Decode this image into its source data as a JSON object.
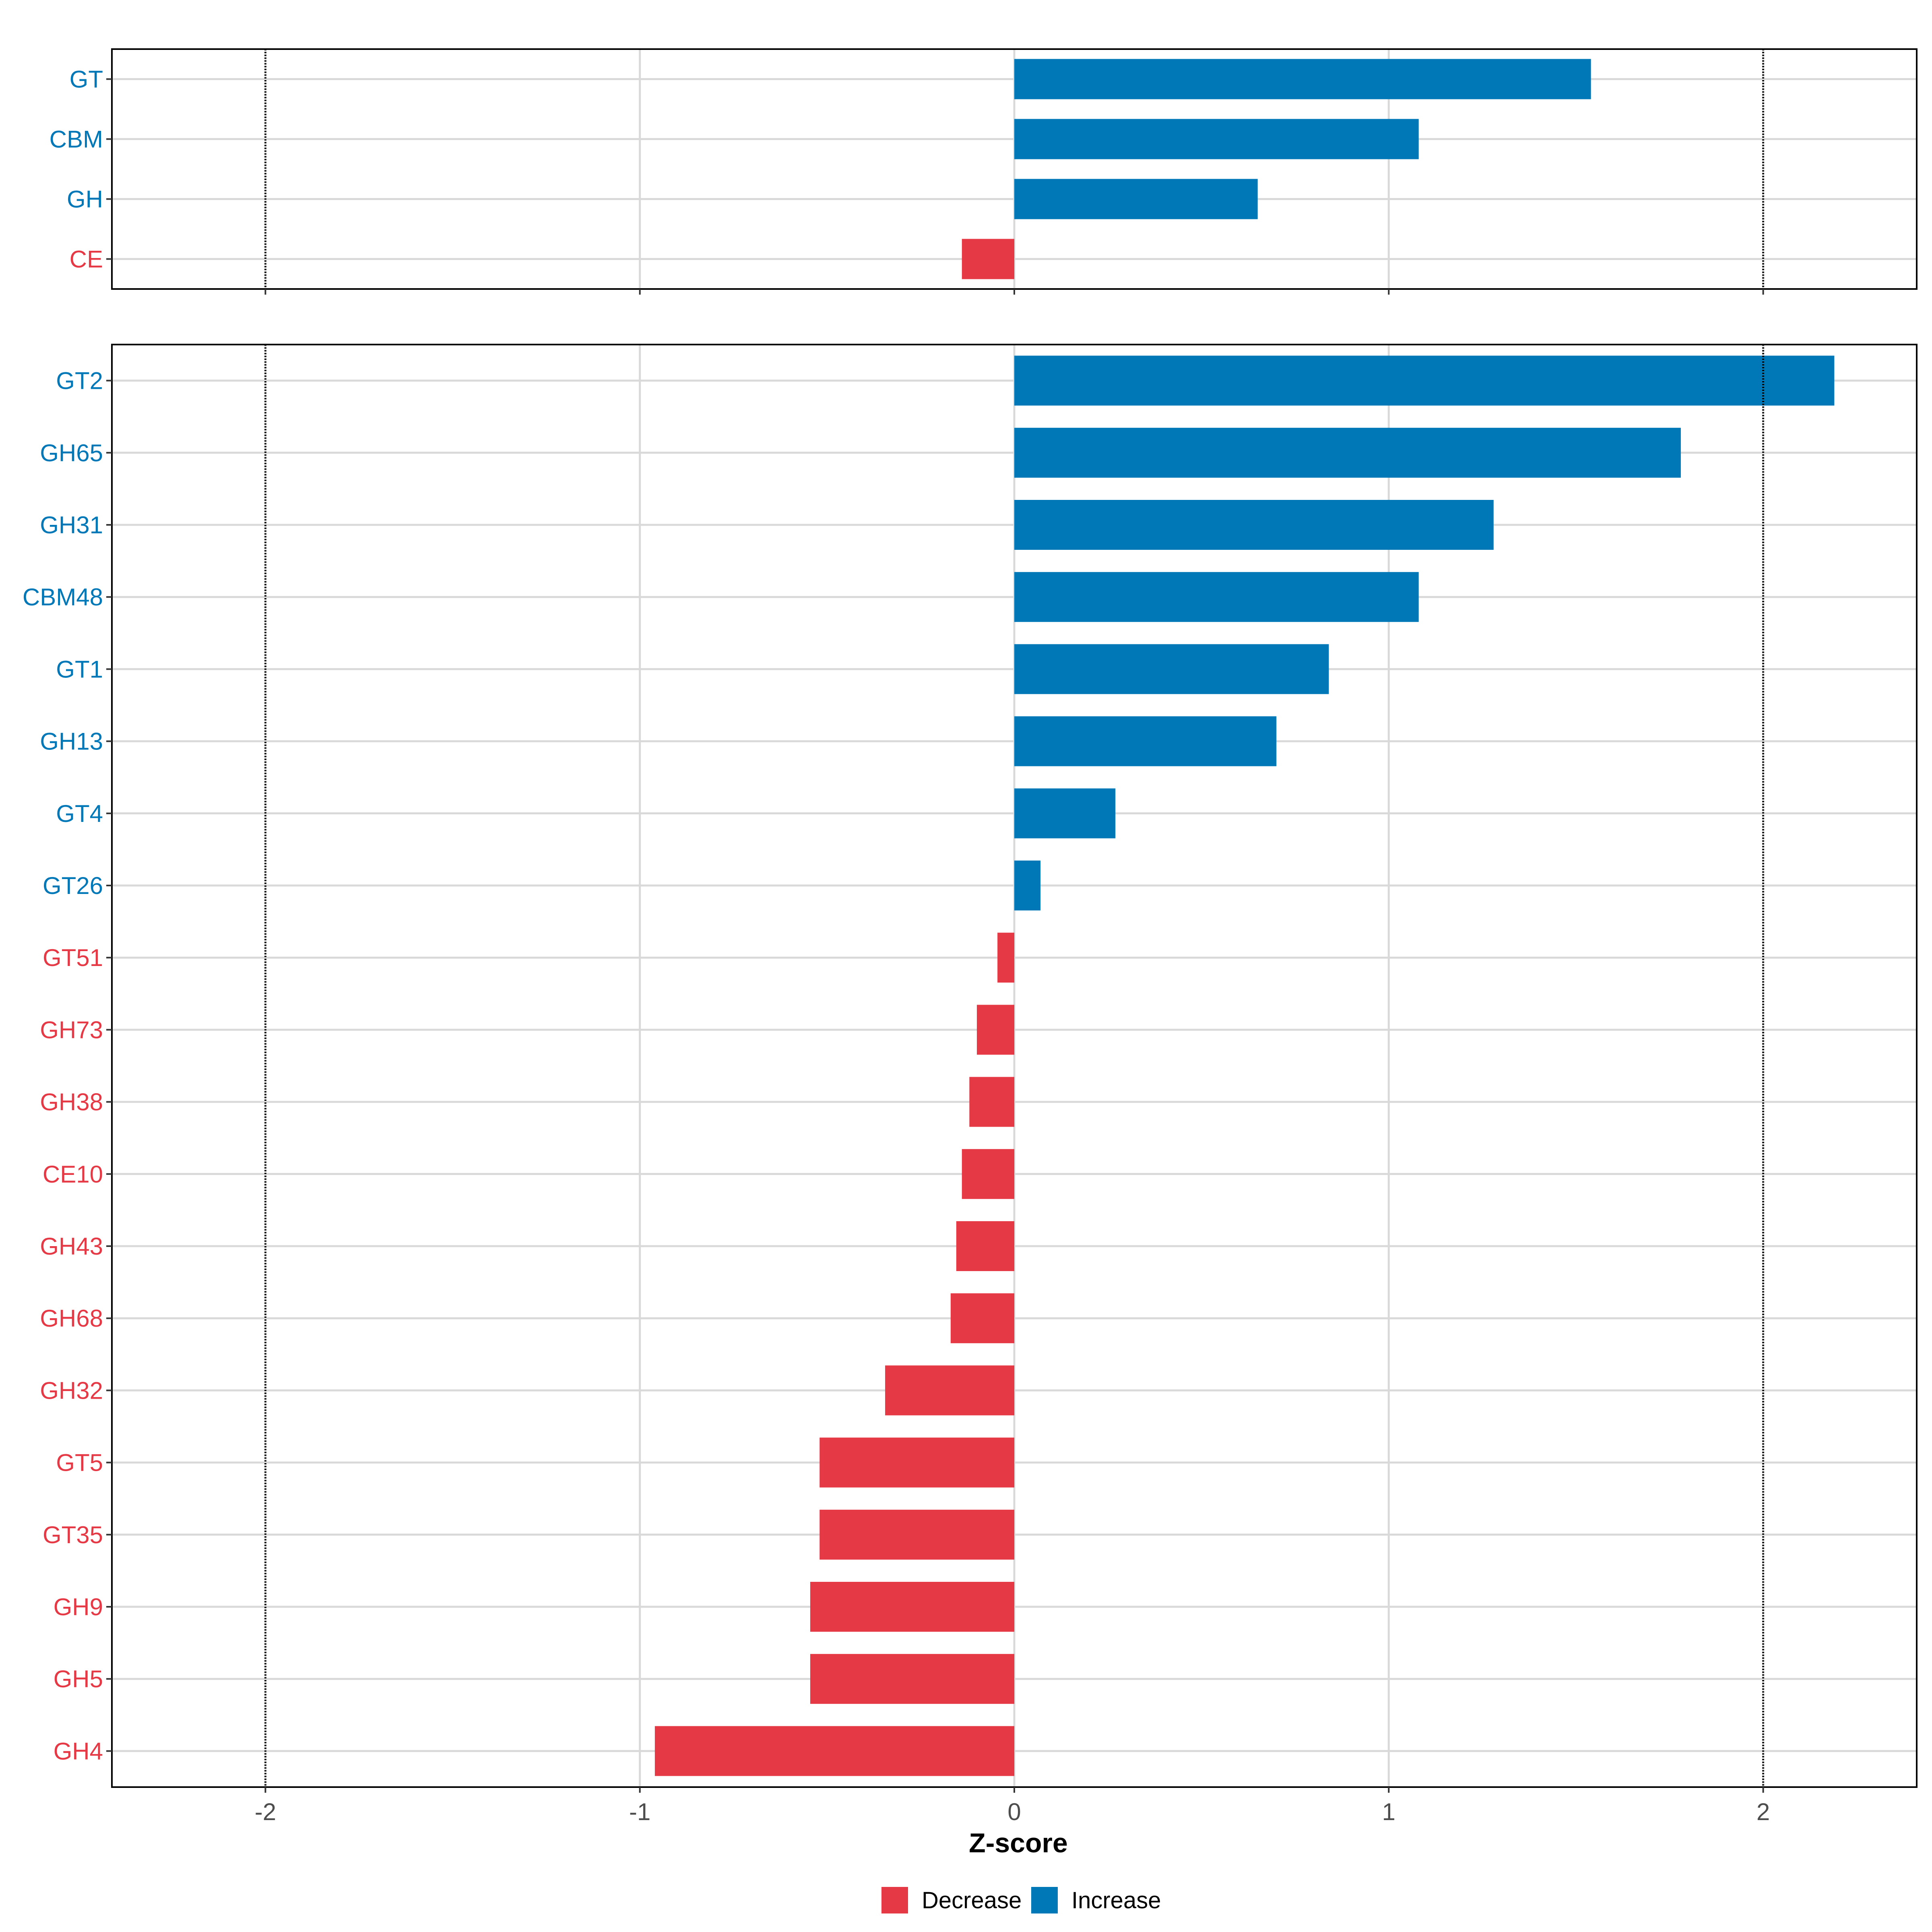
{
  "chart_data": [
    {
      "type": "bar",
      "orientation": "horizontal",
      "panel": "family",
      "categories": [
        "GT",
        "CBM",
        "GH",
        "CE"
      ],
      "values": [
        1.54,
        1.08,
        0.65,
        -0.14
      ],
      "xlim": [
        -2.41,
        2.41
      ],
      "reference_lines": [
        -2,
        2
      ]
    },
    {
      "type": "bar",
      "orientation": "horizontal",
      "panel": "subfamily",
      "categories": [
        "GT2",
        "GH65",
        "GH31",
        "CBM48",
        "GT1",
        "GH13",
        "GT4",
        "GT26",
        "GT51",
        "GH73",
        "GH38",
        "CE10",
        "GH43",
        "GH68",
        "GH32",
        "GT5",
        "GT35",
        "GH9",
        "GH5",
        "GH4"
      ],
      "values": [
        2.19,
        1.78,
        1.28,
        1.08,
        0.84,
        0.7,
        0.27,
        0.07,
        -0.045,
        -0.1,
        -0.12,
        -0.14,
        -0.155,
        -0.17,
        -0.345,
        -0.52,
        -0.52,
        -0.545,
        -0.545,
        -0.96
      ],
      "xlim": [
        -2.41,
        2.41
      ],
      "reference_lines": [
        -2,
        2
      ],
      "xticks": [
        "-2",
        "-1",
        "0",
        "1",
        "2"
      ],
      "xlabel": "Z-score"
    }
  ],
  "legend": {
    "items": [
      {
        "label": "Decrease",
        "color": "#E63946"
      },
      {
        "label": "Increase",
        "color": "#0077B6"
      }
    ]
  },
  "colors": {
    "increase": "#0077B6",
    "decrease": "#E63946"
  }
}
